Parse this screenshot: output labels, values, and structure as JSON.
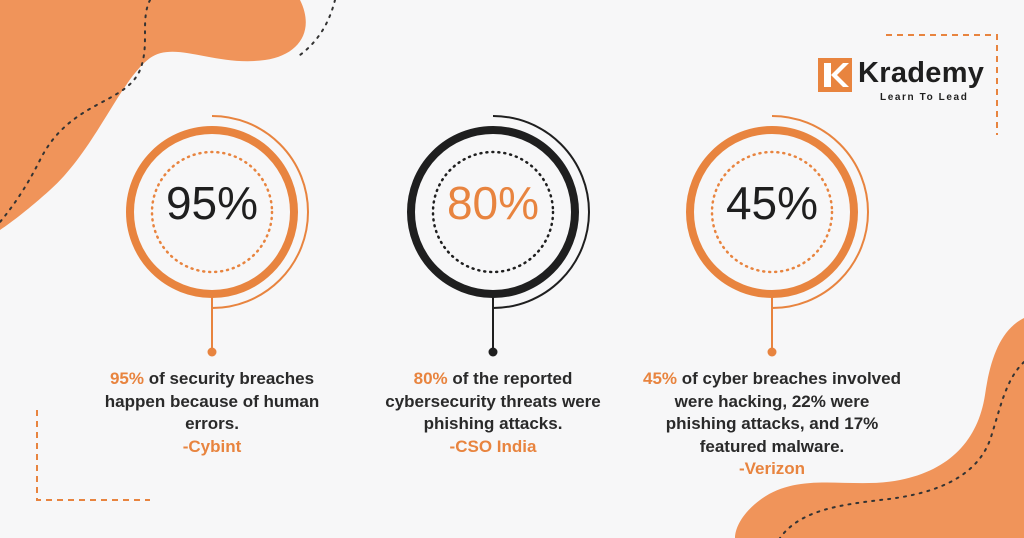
{
  "colors": {
    "accent": "#e8843f",
    "dark": "#1f1f1f",
    "background": "#f7f7f8"
  },
  "brand": {
    "name": "Krademy",
    "tagline": "Learn To Lead",
    "icon": "k-logo-icon"
  },
  "stats": [
    {
      "value": "95%",
      "highlight": "95%",
      "text": " of security breaches happen because of human errors.",
      "source": "-Cybint",
      "ring_color": "#e8843f",
      "value_color": "#1f1f1f"
    },
    {
      "value": "80%",
      "highlight": "80%",
      "text": " of the reported cybersecurity threats were phishing attacks.",
      "source": "-CSO India",
      "ring_color": "#1f1f1f",
      "value_color": "#e8843f"
    },
    {
      "value": "45%",
      "highlight": "45%",
      "text": " of cyber breaches involved were hacking, 22% were phishing attacks, and 17% featured malware.",
      "source": "-Verizon",
      "ring_color": "#e8843f",
      "value_color": "#1f1f1f"
    }
  ]
}
